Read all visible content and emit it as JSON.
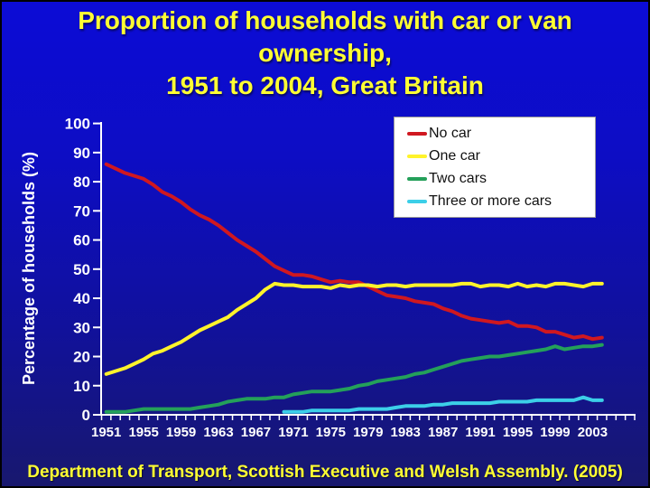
{
  "slide": {
    "title_lines": [
      "Proportion of households with car or van",
      "ownership,",
      "1951 to 2004, Great Britain"
    ],
    "source_caption": "Department of Transport, Scottish Executive and Welsh Assembly. (2005)",
    "colors": {
      "background_top": "#0c0cd6",
      "background_bottom": "#18186e",
      "title_text": "#ffff33",
      "axis": "#ffffff",
      "legend_background": "#ffffff"
    }
  },
  "chart_data": {
    "type": "line",
    "title": "",
    "xlabel": "",
    "ylabel": "Percentage of households (%)",
    "ylim": [
      0,
      100
    ],
    "ytick_interval": 10,
    "grid": false,
    "legend_position": "top-right",
    "xtick_labels": [
      1951,
      1955,
      1959,
      1963,
      1967,
      1971,
      1975,
      1979,
      1983,
      1987,
      1991,
      1995,
      1999,
      2003
    ],
    "x": [
      1951,
      1952,
      1953,
      1954,
      1955,
      1956,
      1957,
      1958,
      1959,
      1960,
      1961,
      1962,
      1963,
      1964,
      1965,
      1966,
      1967,
      1968,
      1969,
      1970,
      1971,
      1972,
      1973,
      1974,
      1975,
      1976,
      1977,
      1978,
      1979,
      1980,
      1981,
      1982,
      1983,
      1984,
      1985,
      1986,
      1987,
      1988,
      1989,
      1990,
      1991,
      1992,
      1993,
      1994,
      1995,
      1996,
      1997,
      1998,
      1999,
      2000,
      2001,
      2002,
      2003,
      2004
    ],
    "series": [
      {
        "name": "No car",
        "color": "#d01820",
        "values": [
          86,
          84.5,
          83,
          82,
          81,
          79,
          76.5,
          75,
          73,
          70.5,
          68.5,
          67,
          65,
          62.5,
          60,
          58,
          56,
          53.5,
          51,
          49.5,
          48,
          48,
          47.5,
          46.5,
          45.5,
          46,
          45.5,
          45.5,
          44,
          42.5,
          41,
          40.5,
          40,
          39,
          38.5,
          38,
          36.5,
          35.5,
          34,
          33,
          32.5,
          32,
          31.5,
          32,
          30.5,
          30.5,
          30,
          28.5,
          28.5,
          27.5,
          26.5,
          27,
          26,
          26.5
        ]
      },
      {
        "name": "One car",
        "color": "#fff32b",
        "values": [
          14,
          15,
          16,
          17.5,
          19,
          21,
          22,
          23.5,
          25,
          27,
          29,
          30.5,
          32,
          33.5,
          36,
          38,
          40,
          43,
          45,
          44.5,
          44.5,
          44,
          44,
          44,
          43.5,
          44.5,
          44,
          44.5,
          44.5,
          44,
          44.5,
          44.5,
          44,
          44.5,
          44.5,
          44.5,
          44.5,
          44.5,
          45,
          45,
          44,
          44.5,
          44.5,
          44,
          45,
          44,
          44.5,
          44,
          45,
          45,
          44.5,
          44,
          45,
          45
        ]
      },
      {
        "name": "Two cars",
        "color": "#24a05a",
        "values": [
          1,
          1,
          1,
          1.5,
          2,
          2,
          2,
          2,
          2,
          2,
          2.5,
          3,
          3.5,
          4.5,
          5,
          5.5,
          5.5,
          5.5,
          6,
          6,
          7,
          7.5,
          8,
          8,
          8,
          8.5,
          9,
          10,
          10.5,
          11.5,
          12,
          12.5,
          13,
          14,
          14.5,
          15.5,
          16.5,
          17.5,
          18.5,
          19,
          19.5,
          20,
          20,
          20.5,
          21,
          21.5,
          22,
          22.5,
          23.5,
          22.5,
          23,
          23.5,
          23.5,
          24
        ]
      },
      {
        "name": "Three or more cars",
        "color": "#3ccfe8",
        "values": [
          null,
          null,
          null,
          null,
          null,
          null,
          null,
          null,
          null,
          null,
          null,
          null,
          null,
          null,
          null,
          null,
          null,
          null,
          null,
          1,
          1,
          1,
          1.5,
          1.5,
          1.5,
          1.5,
          1.5,
          2,
          2,
          2,
          2,
          2.5,
          3,
          3,
          3,
          3.5,
          3.5,
          4,
          4,
          4,
          4,
          4,
          4.5,
          4.5,
          4.5,
          4.5,
          5,
          5,
          5,
          5,
          5,
          6,
          5,
          5
        ]
      }
    ]
  }
}
